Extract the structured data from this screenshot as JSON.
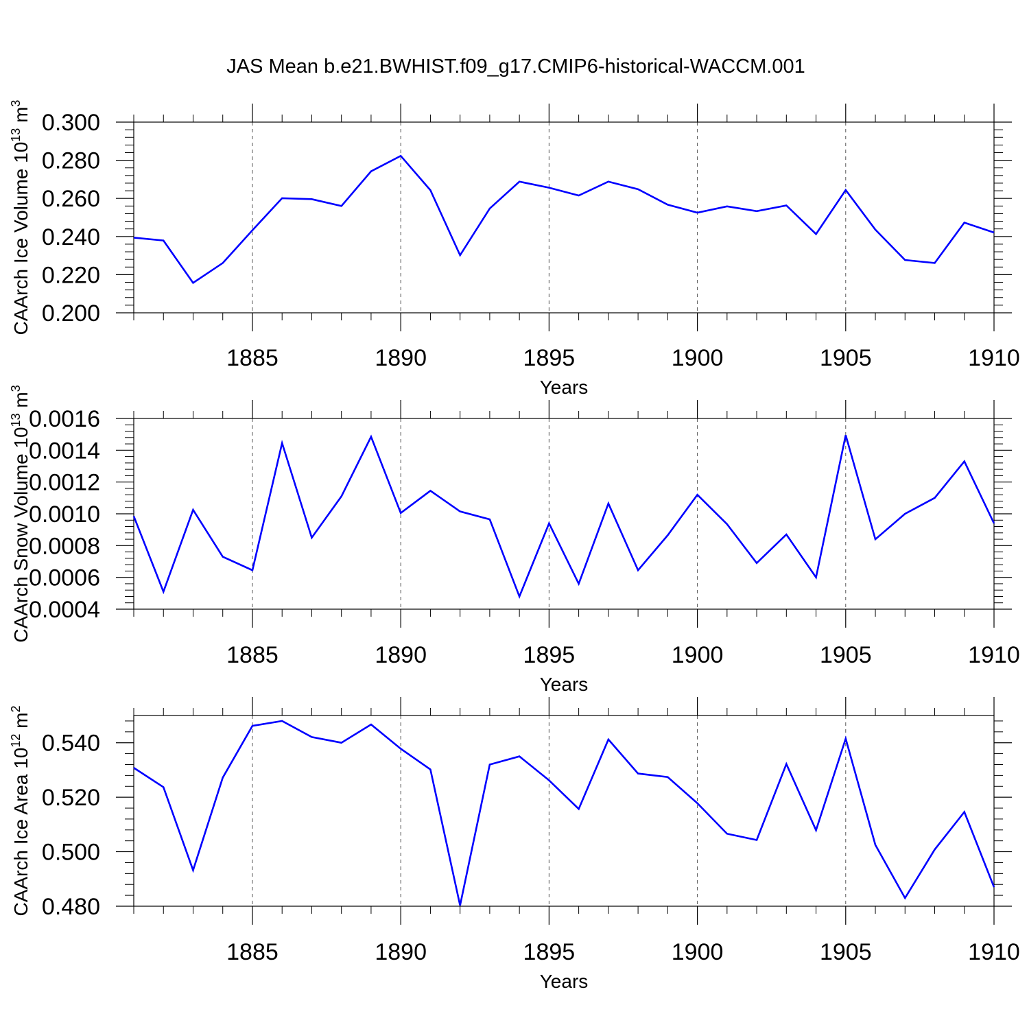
{
  "title": "JAS Mean b.e21.BWHIST.f09_g17.CMIP6-historical-WACCM.001",
  "colors": {
    "series": "#0000ff",
    "axes": "#000000",
    "grid": "#555555"
  },
  "chart_data": [
    {
      "type": "line",
      "xlabel": "Years",
      "ylabel": "CAArch Ice Volume 10",
      "ylabel_exp": "13",
      "ylabel_unit": " m",
      "ylabel_unit_exp": "3",
      "xlim": [
        1881,
        1910
      ],
      "ylim": [
        0.2,
        0.3
      ],
      "xticks": [
        1885,
        1890,
        1895,
        1900,
        1905,
        1910
      ],
      "xtick_labels": [
        "1885",
        "1890",
        "1895",
        "1900",
        "1905",
        "1910"
      ],
      "yticks": [
        0.2,
        0.22,
        0.24,
        0.26,
        0.28,
        0.3
      ],
      "ytick_labels": [
        "0.200",
        "0.220",
        "0.240",
        "0.260",
        "0.280",
        "0.300"
      ],
      "grid": "x dashed",
      "x": [
        1881,
        1882,
        1883,
        1884,
        1885,
        1886,
        1887,
        1888,
        1889,
        1890,
        1891,
        1892,
        1893,
        1894,
        1895,
        1896,
        1897,
        1898,
        1899,
        1900,
        1901,
        1902,
        1903,
        1904,
        1905,
        1906,
        1907,
        1908,
        1909,
        1910
      ],
      "y": [
        0.2394,
        0.2379,
        0.2157,
        0.2261,
        0.2433,
        0.2601,
        0.2596,
        0.256,
        0.2742,
        0.2823,
        0.2643,
        0.2302,
        0.2547,
        0.2688,
        0.2656,
        0.2615,
        0.2688,
        0.2648,
        0.2567,
        0.2525,
        0.2558,
        0.2533,
        0.2563,
        0.2413,
        0.2644,
        0.2436,
        0.2277,
        0.2261,
        0.2473,
        0.2421
      ]
    },
    {
      "type": "line",
      "xlabel": "Years",
      "ylabel": "CAArch Snow Volume 10",
      "ylabel_exp": "13",
      "ylabel_unit": " m",
      "ylabel_unit_exp": "3",
      "xlim": [
        1881,
        1910
      ],
      "ylim": [
        0.0004,
        0.0016
      ],
      "xticks": [
        1885,
        1890,
        1895,
        1900,
        1905,
        1910
      ],
      "xtick_labels": [
        "1885",
        "1890",
        "1895",
        "1900",
        "1905",
        "1910"
      ],
      "yticks": [
        0.0004,
        0.0006,
        0.0008,
        0.001,
        0.0012,
        0.0014,
        0.0016
      ],
      "ytick_labels": [
        "0.0004",
        "0.0006",
        "0.0008",
        "0.0010",
        "0.0012",
        "0.0014",
        "0.0016"
      ],
      "grid": "x dashed",
      "x": [
        1881,
        1882,
        1883,
        1884,
        1885,
        1886,
        1887,
        1888,
        1889,
        1890,
        1891,
        1892,
        1893,
        1894,
        1895,
        1896,
        1897,
        1898,
        1899,
        1900,
        1901,
        1902,
        1903,
        1904,
        1905,
        1906,
        1907,
        1908,
        1909,
        1910
      ],
      "y": [
        0.000985,
        0.00051,
        0.001025,
        0.00073,
        0.000645,
        0.001445,
        0.00085,
        0.00111,
        0.001485,
        0.001005,
        0.001145,
        0.001015,
        0.000965,
        0.00048,
        0.00094,
        0.00056,
        0.001065,
        0.000645,
        0.000865,
        0.00112,
        0.000935,
        0.00069,
        0.00087,
        0.0006,
        0.001495,
        0.00084,
        0.001,
        0.0011,
        0.00133,
        0.00094
      ]
    },
    {
      "type": "line",
      "xlabel": "Years",
      "ylabel": "CAArch Ice Area 10",
      "ylabel_exp": "12",
      "ylabel_unit": " m",
      "ylabel_unit_exp": "2",
      "xlim": [
        1881,
        1910
      ],
      "ylim": [
        0.48,
        0.55
      ],
      "xticks": [
        1885,
        1890,
        1895,
        1900,
        1905,
        1910
      ],
      "xtick_labels": [
        "1885",
        "1890",
        "1895",
        "1900",
        "1905",
        "1910"
      ],
      "yticks": [
        0.48,
        0.5,
        0.52,
        0.54
      ],
      "ytick_labels": [
        "0.480",
        "0.500",
        "0.520",
        "0.540"
      ],
      "grid": "x dashed",
      "x": [
        1881,
        1882,
        1883,
        1884,
        1885,
        1886,
        1887,
        1888,
        1889,
        1890,
        1891,
        1892,
        1893,
        1894,
        1895,
        1896,
        1897,
        1898,
        1899,
        1900,
        1901,
        1902,
        1903,
        1904,
        1905,
        1906,
        1907,
        1908,
        1909,
        1910
      ],
      "y": [
        0.5308,
        0.5237,
        0.4932,
        0.5272,
        0.5462,
        0.548,
        0.5421,
        0.54,
        0.5467,
        0.5378,
        0.5302,
        0.4803,
        0.532,
        0.535,
        0.5262,
        0.5157,
        0.5412,
        0.5287,
        0.5274,
        0.5178,
        0.5066,
        0.5043,
        0.5322,
        0.5079,
        0.5415,
        0.5025,
        0.483,
        0.5008,
        0.5146,
        0.487
      ]
    }
  ]
}
